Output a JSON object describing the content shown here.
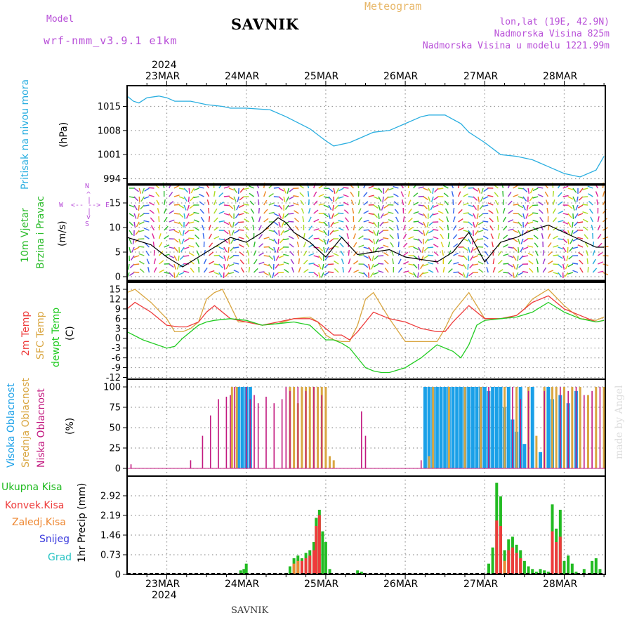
{
  "header": {
    "model_label": "Model",
    "model_name": "wrf-nmm_v3.9.1 e1km",
    "station_title": "SAVNIK",
    "meteogram_label": "Meteogram",
    "lonlat": "lon,lat (19E, 42.9N)",
    "elevation": "Nadmorska Visina 825m",
    "model_elevation": "Nadmorska Visina u modelu 1221.99m",
    "footer_station": "SAVNIK",
    "watermark": "made by Angel"
  },
  "dates": {
    "year": "2024",
    "labels": [
      "23MAR",
      "24MAR",
      "25MAR",
      "26MAR",
      "27MAR",
      "28MAR"
    ]
  },
  "panels": {
    "pressure": {
      "label1": "Pritisak na nivou mora",
      "label2": "(hPa)"
    },
    "wind": {
      "label1": "10m Vjetar",
      "label2": "Brzina i Pravac",
      "unit": "(m/s)",
      "compass": "N",
      "compass_w": "W",
      "compass_e": "E",
      "compass_s": "S"
    },
    "temp": {
      "label1": "2m Temp",
      "label2": "SFC Temp",
      "label3": "dewpt Temp",
      "unit": "(C)"
    },
    "cloud": {
      "label1": "Visoka Oblacnost",
      "label2": "Srednja Oblacnost",
      "label3": "Niska Oblacnost",
      "unit": "(%)"
    },
    "precip": {
      "legend": [
        "Ukupna Kisa",
        "Konvek.Kisa",
        "Zaledj.Kisa",
        "Snijeg",
        "Grad"
      ],
      "unit": "1hr Precip (mm)"
    }
  },
  "colors": {
    "pressure": "#29aee0",
    "wind_label": "#2ebd2e",
    "temp2m": "#ee3b3b",
    "sfc": "#d9a641",
    "dewpt": "#22cc22",
    "high_cloud": "#1aa0e8",
    "mid_cloud": "#d9a641",
    "low_cloud": "#c2187f",
    "rain_total": "#22bb22",
    "convective": "#ee3b3b",
    "freezing": "#ee8833",
    "snow": "#3b3bdd",
    "hail": "#29c4c4",
    "compass": "#b84fd8"
  },
  "chart_data": [
    {
      "type": "line",
      "title": "Pritisak na nivou mora",
      "ylabel": "(hPa)",
      "x_unit": "days since 23MAR 2024 00UTC",
      "ylim": [
        994,
        1022
      ],
      "yticks": [
        994,
        1001,
        1008,
        1015
      ],
      "series": [
        {
          "name": "Pritisak",
          "x": [
            -0.5,
            -0.42,
            -0.35,
            -0.25,
            -0.1,
            0,
            0.1,
            0.3,
            0.5,
            0.7,
            0.8,
            1.0,
            1.3,
            1.5,
            1.8,
            2.0,
            2.1,
            2.3,
            2.4,
            2.6,
            2.8,
            3.0,
            3.2,
            3.3,
            3.5,
            3.7,
            3.8,
            4.0,
            4.2,
            4.4,
            4.6,
            4.8,
            5.0,
            5.2,
            5.4,
            5.5
          ],
          "y": [
            1018,
            1016.5,
            1016,
            1017.5,
            1018,
            1017.5,
            1016.5,
            1016.5,
            1015.5,
            1015,
            1014.5,
            1014.5,
            1014,
            1012,
            1008.5,
            1005,
            1003.5,
            1004.5,
            1005.5,
            1007.5,
            1008,
            1010,
            1012,
            1012.5,
            1012.5,
            1010,
            1007.5,
            1004.5,
            1001,
            1000.5,
            999.5,
            997.5,
            995.5,
            994.5,
            996.5,
            1000.5
          ]
        }
      ]
    },
    {
      "type": "line",
      "title": "10m Vjetar Brzina i Pravac",
      "ylabel": "(m/s)",
      "x_unit": "days since 23MAR 2024 00UTC",
      "ylim": [
        0,
        19
      ],
      "yticks": [
        0,
        5,
        10,
        15
      ],
      "series": [
        {
          "name": "Brzina",
          "x": [
            -0.5,
            -0.2,
            0,
            0.2,
            0.4,
            0.6,
            0.8,
            1.0,
            1.2,
            1.4,
            1.5,
            1.6,
            1.8,
            2.0,
            2.2,
            2.4,
            2.6,
            2.8,
            3.0,
            3.2,
            3.4,
            3.6,
            3.8,
            4.0,
            4.2,
            4.4,
            4.6,
            4.8,
            5.0,
            5.2,
            5.4,
            5.5
          ],
          "y": [
            8,
            6.5,
            4,
            2,
            4,
            6,
            8,
            7,
            9,
            12,
            11,
            9,
            7,
            4,
            8,
            4.5,
            5,
            5.5,
            4,
            3.5,
            3,
            5,
            9,
            3,
            7,
            8,
            9.5,
            10.5,
            9,
            7.5,
            6,
            6
          ]
        }
      ]
    },
    {
      "type": "line",
      "title": "2m Temp / SFC Temp / dewpt Temp",
      "ylabel": "(C)",
      "x_unit": "days since 23MAR 2024 00UTC",
      "ylim": [
        -12,
        16.5
      ],
      "yticks": [
        -12,
        -9,
        -6,
        -3,
        0,
        3,
        6,
        9,
        12,
        15
      ],
      "series": [
        {
          "name": "2m Temp",
          "x": [
            -0.5,
            -0.4,
            -0.2,
            0,
            0.15,
            0.25,
            0.4,
            0.5,
            0.6,
            0.8,
            1.0,
            1.1,
            1.2,
            1.4,
            1.6,
            1.8,
            1.9,
            2.0,
            2.1,
            2.2,
            2.3,
            2.4,
            2.5,
            2.6,
            2.8,
            3.0,
            3.2,
            3.4,
            3.5,
            3.6,
            3.8,
            4.0,
            4.2,
            4.4,
            4.5,
            4.6,
            4.8,
            5.0,
            5.2,
            5.4,
            5.5
          ],
          "y": [
            9,
            11,
            8,
            4,
            3.5,
            3.5,
            5,
            8,
            10,
            6,
            5,
            4.5,
            4,
            5,
            6,
            6,
            5,
            3,
            1,
            1,
            -0.5,
            2,
            5,
            8,
            6,
            5,
            3,
            2,
            2,
            5,
            10,
            6,
            6,
            7,
            9,
            11,
            13,
            9,
            7,
            5,
            5.5
          ]
        },
        {
          "name": "SFC Temp",
          "x": [
            -0.5,
            -0.4,
            -0.2,
            0,
            0.1,
            0.2,
            0.3,
            0.4,
            0.5,
            0.6,
            0.7,
            0.8,
            0.9,
            1.0,
            1.1,
            1.2,
            1.4,
            1.6,
            1.8,
            1.9,
            2.0,
            2.1,
            2.2,
            2.3,
            2.4,
            2.5,
            2.6,
            2.8,
            3.0,
            3.2,
            3.4,
            3.5,
            3.6,
            3.8,
            4.0,
            4.2,
            4.4,
            4.5,
            4.6,
            4.8,
            5.0,
            5.2,
            5.4,
            5.5
          ],
          "y": [
            14,
            15,
            11,
            6,
            2,
            2,
            3,
            5,
            12,
            14,
            15,
            10,
            5,
            5,
            4.5,
            4,
            4.5,
            6,
            6.5,
            5,
            1,
            -0.5,
            -1,
            -1,
            4,
            12,
            14,
            6,
            -1,
            -1,
            -1,
            3,
            8,
            14,
            6,
            6,
            7,
            9,
            12,
            15,
            10,
            6,
            5.5,
            6.5
          ]
        },
        {
          "name": "dewpt Temp",
          "x": [
            -0.5,
            -0.3,
            0,
            0.1,
            0.2,
            0.4,
            0.5,
            0.6,
            0.8,
            1.0,
            1.2,
            1.4,
            1.6,
            1.8,
            2.0,
            2.1,
            2.2,
            2.3,
            2.4,
            2.5,
            2.6,
            2.7,
            2.8,
            3.0,
            3.2,
            3.4,
            3.6,
            3.7,
            3.8,
            3.9,
            4.0,
            4.2,
            4.4,
            4.6,
            4.8,
            5.0,
            5.2,
            5.4,
            5.5
          ],
          "y": [
            2,
            -0.5,
            -3,
            -2.5,
            0,
            4,
            5,
            5.5,
            6,
            5.5,
            4,
            4.5,
            5,
            4,
            -0.5,
            -0.5,
            -1.5,
            -3,
            -6,
            -9,
            -10,
            -10.5,
            -10.5,
            -9,
            -6,
            -2,
            -4,
            -6,
            -2,
            4,
            5.5,
            6,
            6.5,
            8,
            11,
            8,
            6,
            5,
            5.5
          ]
        }
      ]
    },
    {
      "type": "bar",
      "title": "Visoka / Srednja / Niska Oblacnost",
      "ylabel": "(%)",
      "x_unit": "days since 23MAR 2024 00UTC",
      "ylim": [
        0,
        100
      ],
      "yticks": [
        0,
        25,
        50,
        75,
        100
      ],
      "series": [
        {
          "name": "Niska Oblacnost",
          "x": [
            -0.45,
            0.3,
            0.45,
            0.55,
            0.65,
            0.75,
            0.8,
            0.85,
            1.0,
            1.05,
            1.1,
            1.15,
            1.25,
            1.35,
            1.45,
            1.5,
            1.55,
            1.65,
            1.75,
            1.85,
            1.95,
            2.45,
            2.5,
            3.2,
            4.05,
            4.35,
            4.45,
            4.55,
            4.75,
            4.95,
            5.05,
            5.15,
            5.25,
            5.35,
            5.45
          ],
          "y": [
            5,
            10,
            40,
            65,
            85,
            88,
            90,
            100,
            100,
            85,
            90,
            80,
            88,
            80,
            85,
            100,
            95,
            100,
            95,
            100,
            90,
            70,
            40,
            10,
            100,
            100,
            85,
            95,
            95,
            100,
            95,
            100,
            90,
            95,
            100
          ]
        },
        {
          "name": "Srednja Oblacnost",
          "x": [
            0.82,
            0.88,
            1.55,
            1.6,
            1.65,
            1.7,
            1.75,
            1.8,
            1.85,
            1.9,
            1.95,
            2.0,
            2.05,
            2.1,
            3.3,
            3.35,
            3.55,
            3.75,
            3.95,
            4.25,
            4.4,
            4.55,
            4.65,
            4.75,
            4.85,
            4.9,
            5.0,
            5.1,
            5.2,
            5.3,
            5.4,
            5.5
          ],
          "y": [
            100,
            100,
            100,
            100,
            80,
            100,
            100,
            100,
            100,
            100,
            100,
            100,
            15,
            10,
            15,
            100,
            100,
            100,
            100,
            100,
            100,
            100,
            40,
            100,
            100,
            100,
            100,
            100,
            100,
            90,
            100,
            100
          ]
        },
        {
          "name": "Visoka Oblacnost",
          "x": [
            0.9,
            0.95,
            1.0,
            1.05,
            3.25,
            3.3,
            3.35,
            3.4,
            3.45,
            3.5,
            3.55,
            3.6,
            3.65,
            3.7,
            3.75,
            3.8,
            3.85,
            3.9,
            3.95,
            4.0,
            4.05,
            4.1,
            4.15,
            4.2,
            4.25,
            4.3,
            4.35,
            4.4,
            4.45,
            4.5,
            4.6,
            4.7,
            4.8,
            4.85,
            4.95,
            5.05,
            5.15
          ],
          "y": [
            100,
            100,
            100,
            100,
            100,
            100,
            100,
            100,
            100,
            100,
            100,
            100,
            100,
            100,
            100,
            100,
            100,
            100,
            100,
            100,
            95,
            100,
            100,
            100,
            75,
            100,
            60,
            45,
            100,
            30,
            100,
            20,
            100,
            85,
            90,
            80,
            95
          ]
        }
      ]
    },
    {
      "type": "bar",
      "title": "1hr Precip",
      "ylabel": "1hr Precip (mm)",
      "x_unit": "days since 23MAR 2024 00UTC",
      "ylim": [
        0,
        3.4
      ],
      "yticks": [
        0,
        0.73,
        1.46,
        2.19,
        2.92
      ],
      "series": [
        {
          "name": "Ukupna Kisa",
          "x": [
            0.93,
            0.97,
            1.0,
            1.55,
            1.6,
            1.65,
            1.7,
            1.75,
            1.8,
            1.85,
            1.88,
            1.92,
            1.96,
            2.0,
            2.05,
            2.4,
            2.45,
            4.05,
            4.1,
            4.15,
            4.2,
            4.25,
            4.3,
            4.35,
            4.4,
            4.45,
            4.5,
            4.55,
            4.6,
            4.65,
            4.7,
            4.75,
            4.8,
            4.85,
            4.9,
            4.95,
            5.0,
            5.05,
            5.1,
            5.15,
            5.25,
            5.35,
            5.4,
            5.45
          ],
          "y": [
            0.15,
            0.2,
            0.4,
            0.3,
            0.6,
            0.7,
            0.6,
            0.8,
            0.9,
            1.2,
            2.1,
            2.4,
            1.6,
            1.2,
            0.2,
            0.15,
            0.1,
            0.4,
            1.0,
            3.4,
            2.9,
            0.9,
            1.3,
            1.4,
            1.1,
            0.9,
            0.5,
            0.3,
            0.2,
            0.1,
            0.2,
            0.15,
            0.1,
            2.6,
            1.7,
            2.4,
            0.5,
            0.7,
            0.4,
            0.1,
            0.2,
            0.5,
            0.6,
            0.2
          ]
        },
        {
          "name": "Konvek.Kisa",
          "x": [
            1.7,
            1.75,
            1.8,
            1.85,
            1.88,
            1.92,
            4.15,
            4.2,
            4.3,
            4.35,
            4.4,
            4.45,
            4.85,
            4.9,
            4.95
          ],
          "y": [
            0.5,
            0.6,
            0.7,
            0.9,
            1.8,
            2.2,
            2.0,
            1.8,
            0.9,
            1.0,
            0.8,
            0.6,
            1.6,
            1.2,
            1.4
          ]
        },
        {
          "name": "Zaledj.Kisa",
          "x": [
            1.6,
            1.65,
            4.25
          ],
          "y": [
            0.4,
            0.5,
            0.5
          ]
        }
      ]
    }
  ]
}
